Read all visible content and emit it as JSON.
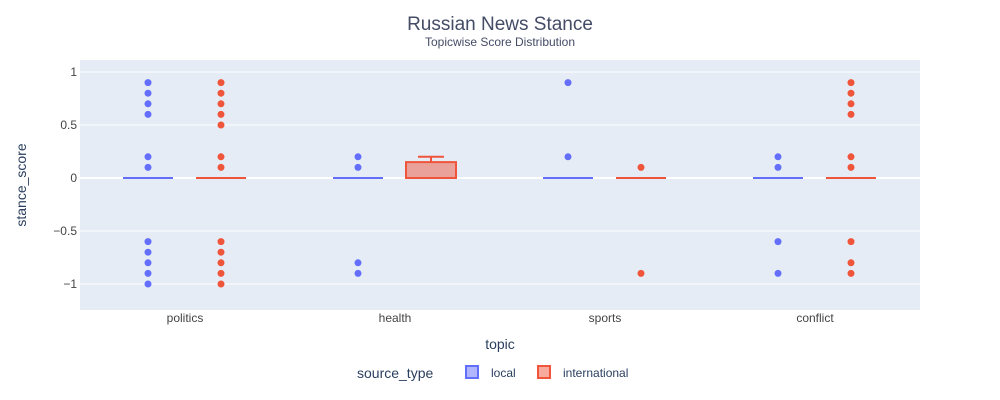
{
  "chart_data": {
    "type": "box",
    "title": "Russian News Stance",
    "subtitle": "Topicwise Score Distribution",
    "xlabel": "topic",
    "ylabel": "stance_score",
    "categories": [
      "politics",
      "health",
      "sports",
      "conflict"
    ],
    "ylim": [
      -1.1,
      1.1
    ],
    "yticks": [
      1,
      0.5,
      0,
      -0.5,
      -1
    ],
    "ytick_labels": [
      "1",
      "0.5",
      "0",
      "−0.5",
      "−1"
    ],
    "grid": true,
    "legend_title": "source_type",
    "legend_position": "bottom",
    "series": [
      {
        "name": "local",
        "color": "#636efa",
        "boxes": [
          {
            "q1": 0,
            "median": 0,
            "q3": 0,
            "whisker_low": 0,
            "whisker_high": 0,
            "outliers": [
              0.9,
              0.8,
              0.7,
              0.6,
              0.2,
              0.1,
              -0.6,
              -0.7,
              -0.8,
              -0.9,
              -1.0
            ]
          },
          {
            "q1": 0,
            "median": 0,
            "q3": 0,
            "whisker_low": 0,
            "whisker_high": 0,
            "outliers": [
              0.2,
              0.1,
              -0.8,
              -0.9
            ]
          },
          {
            "q1": 0,
            "median": 0,
            "q3": 0,
            "whisker_low": 0,
            "whisker_high": 0,
            "outliers": [
              0.9,
              0.2
            ]
          },
          {
            "q1": 0,
            "median": 0,
            "q3": 0,
            "whisker_low": 0,
            "whisker_high": 0,
            "outliers": [
              0.2,
              0.1,
              -0.6,
              -0.9
            ]
          }
        ]
      },
      {
        "name": "international",
        "color": "#ef553b",
        "boxes": [
          {
            "q1": 0,
            "median": 0,
            "q3": 0,
            "whisker_low": 0,
            "whisker_high": 0,
            "outliers": [
              0.9,
              0.8,
              0.7,
              0.6,
              0.5,
              0.2,
              0.1,
              -0.6,
              -0.7,
              -0.8,
              -0.9,
              -1.0
            ]
          },
          {
            "q1": 0,
            "median": 0,
            "q3": 0.15,
            "whisker_low": 0,
            "whisker_high": 0.2,
            "outliers": []
          },
          {
            "q1": 0,
            "median": 0,
            "q3": 0,
            "whisker_low": 0,
            "whisker_high": 0,
            "outliers": [
              0.1,
              -0.9
            ]
          },
          {
            "q1": 0,
            "median": 0,
            "q3": 0,
            "whisker_low": 0,
            "whisker_high": 0,
            "outliers": [
              0.9,
              0.8,
              0.7,
              0.6,
              0.2,
              0.1,
              -0.6,
              -0.8,
              -0.9
            ]
          }
        ]
      }
    ]
  }
}
